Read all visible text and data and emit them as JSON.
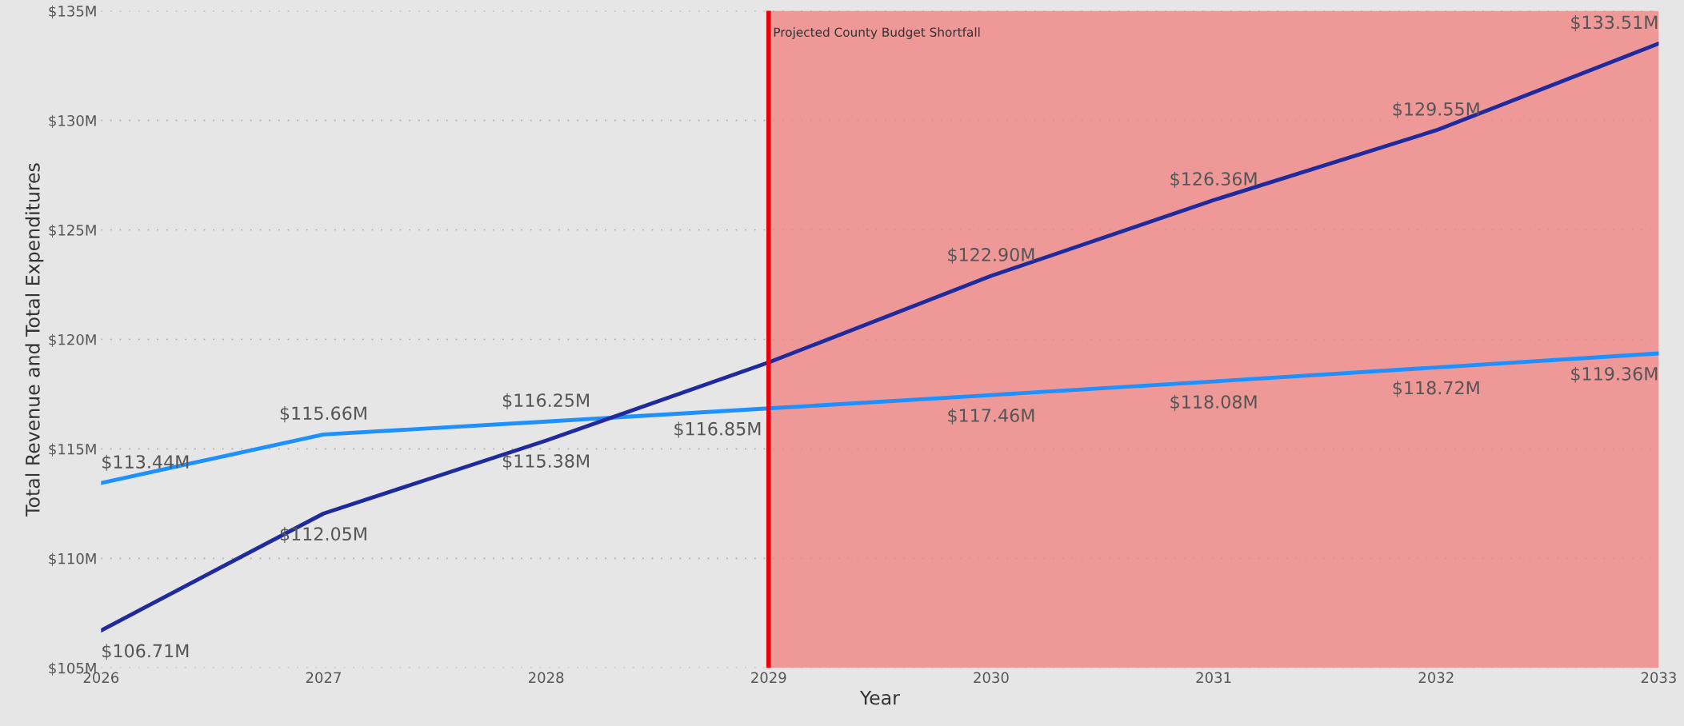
{
  "chart_data": {
    "type": "line",
    "xlabel": "Year",
    "ylabel": "Total Revenue and Total Expenditures",
    "x": [
      2026,
      2027,
      2028,
      2029,
      2030,
      2031,
      2032,
      2033
    ],
    "series": [
      {
        "color": "#1e90ff",
        "values": [
          113.44,
          115.66,
          116.25,
          116.85,
          117.46,
          118.08,
          118.72,
          119.36
        ],
        "value_labels": [
          "$113.44M",
          "$115.66M",
          "$116.25M",
          "$116.85M",
          "$117.46M",
          "$118.08M",
          "$118.72M",
          "$119.36M"
        ]
      },
      {
        "color": "#1f2a9c",
        "values": [
          106.71,
          112.05,
          115.38,
          118.95,
          122.9,
          126.36,
          129.55,
          133.51
        ],
        "value_labels": [
          "$106.71M",
          "$112.05M",
          "$115.38M",
          null,
          "$122.90M",
          "$126.36M",
          "$129.55M",
          "$133.51M"
        ]
      }
    ],
    "xlim": [
      2026,
      2033
    ],
    "xticks": [
      2026,
      2027,
      2028,
      2029,
      2030,
      2031,
      2032,
      2033
    ],
    "ylim": [
      105,
      135
    ],
    "yticks": [
      {
        "value": 105,
        "label": "$105M"
      },
      {
        "value": 110,
        "label": "$110M"
      },
      {
        "value": 115,
        "label": "$115M"
      },
      {
        "value": 120,
        "label": "$120M"
      },
      {
        "value": 125,
        "label": "$125M"
      },
      {
        "value": 130,
        "label": "$130M"
      },
      {
        "value": 135,
        "label": "$135M"
      }
    ],
    "bands": [
      {
        "axis": "x",
        "from": 2029,
        "to": 2033,
        "label": "Projected County Budget Shortfall",
        "color": "#f08a8a"
      }
    ],
    "ref_lines": [
      {
        "axis": "x",
        "value": 2029,
        "color": "#e8000b",
        "line_style": "solid"
      }
    ],
    "grid": "y",
    "legend": false,
    "marker": "none",
    "line_style": "solid"
  }
}
